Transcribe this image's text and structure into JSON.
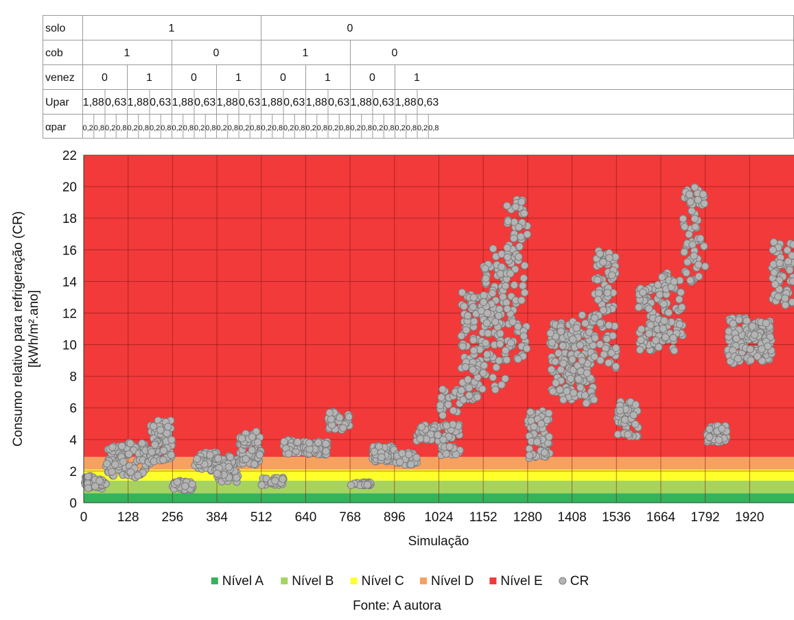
{
  "header_table": {
    "row_labels": [
      "solo",
      "cob",
      "venez",
      "Upar",
      "αpar"
    ],
    "solo": [
      "1",
      "0"
    ],
    "cob": [
      "1",
      "0",
      "1",
      "0"
    ],
    "venez": [
      "0",
      "1",
      "0",
      "1",
      "0",
      "1",
      "0",
      "1"
    ],
    "upar": [
      "1,88",
      "0,63",
      "1,88",
      "0,63",
      "1,88",
      "0,63",
      "1,88",
      "0,63",
      "1,88",
      "0,63",
      "1,88",
      "0,63",
      "1,88",
      "0,63",
      "1,88",
      "0,63"
    ],
    "apar": [
      "0,2",
      "0,8",
      "0,2",
      "0,8",
      "0,2",
      "0,8",
      "0,2",
      "0,8",
      "0,2",
      "0,8",
      "0,2",
      "0,8",
      "0,2",
      "0,8",
      "0,2",
      "0,8",
      "0,2",
      "0,8",
      "0,2",
      "0,8",
      "0,2",
      "0,8",
      "0,2",
      "0,8",
      "0,2",
      "0,8",
      "0,2",
      "0,8",
      "0,2",
      "0,8",
      "0,2",
      "0,8"
    ]
  },
  "chart_data": {
    "type": "scatter",
    "xlabel": "Simulação",
    "ylabel": "Consumo relativo para refrigeração (CR) [kWh/m².ano]",
    "xlim": [
      0,
      2048
    ],
    "ylim": [
      0,
      22
    ],
    "x_ticks": [
      "0",
      "128",
      "256",
      "384",
      "512",
      "640",
      "768",
      "896",
      "1024",
      "1152",
      "1280",
      "1408",
      "1536",
      "1664",
      "1792",
      "1920"
    ],
    "y_ticks": [
      "0",
      "2",
      "4",
      "6",
      "8",
      "10",
      "12",
      "14",
      "16",
      "18",
      "20",
      "22"
    ],
    "grid": true,
    "legend_position": "bottom",
    "bands": [
      {
        "name": "Nível A",
        "from": 0,
        "to": 0.6,
        "color": "#33b45a"
      },
      {
        "name": "Nível B",
        "from": 0.6,
        "to": 1.4,
        "color": "#a6d35f"
      },
      {
        "name": "Nível C",
        "from": 1.4,
        "to": 2.1,
        "color": "#ffff2b"
      },
      {
        "name": "Nível D",
        "from": 2.1,
        "to": 2.9,
        "color": "#f7a160"
      },
      {
        "name": "Nível E",
        "from": 2.9,
        "to": 22,
        "color": "#f23a3a"
      }
    ],
    "series": [
      {
        "name": "CR",
        "color": "#b4b4b4",
        "clusters": [
          {
            "x0": 0,
            "x1": 30,
            "y0": 0.9,
            "y1": 1.7,
            "n": 30
          },
          {
            "x0": 30,
            "x1": 64,
            "y0": 0.9,
            "y1": 1.5,
            "n": 24
          },
          {
            "x0": 64,
            "x1": 128,
            "y0": 1.7,
            "y1": 3.6,
            "n": 60
          },
          {
            "x0": 128,
            "x1": 192,
            "y0": 1.6,
            "y1": 3.8,
            "n": 60
          },
          {
            "x0": 192,
            "x1": 256,
            "y0": 2.6,
            "y1": 5.3,
            "n": 70
          },
          {
            "x0": 256,
            "x1": 320,
            "y0": 0.8,
            "y1": 1.4,
            "n": 30
          },
          {
            "x0": 320,
            "x1": 384,
            "y0": 2.0,
            "y1": 3.2,
            "n": 50
          },
          {
            "x0": 384,
            "x1": 448,
            "y0": 1.3,
            "y1": 3.0,
            "n": 50
          },
          {
            "x0": 448,
            "x1": 512,
            "y0": 2.4,
            "y1": 4.6,
            "n": 60
          },
          {
            "x0": 512,
            "x1": 576,
            "y0": 1.1,
            "y1": 1.6,
            "n": 30
          },
          {
            "x0": 576,
            "x1": 640,
            "y0": 3.1,
            "y1": 4.0,
            "n": 50
          },
          {
            "x0": 640,
            "x1": 704,
            "y0": 3.0,
            "y1": 3.9,
            "n": 50
          },
          {
            "x0": 704,
            "x1": 768,
            "y0": 4.6,
            "y1": 5.8,
            "n": 30
          },
          {
            "x0": 768,
            "x1": 832,
            "y0": 1.1,
            "y1": 1.3,
            "n": 24
          },
          {
            "x0": 832,
            "x1": 896,
            "y0": 2.6,
            "y1": 3.6,
            "n": 50
          },
          {
            "x0": 896,
            "x1": 960,
            "y0": 2.4,
            "y1": 3.2,
            "n": 40
          },
          {
            "x0": 960,
            "x1": 1024,
            "y0": 3.9,
            "y1": 5.0,
            "n": 50
          },
          {
            "x0": 1024,
            "x1": 1088,
            "y0": 3.0,
            "y1": 7.2,
            "n": 60
          },
          {
            "x0": 1088,
            "x1": 1152,
            "y0": 6.5,
            "y1": 13.4,
            "n": 90
          },
          {
            "x0": 1152,
            "x1": 1216,
            "y0": 7.0,
            "y1": 16.1,
            "n": 90
          },
          {
            "x0": 1216,
            "x1": 1280,
            "y0": 9.0,
            "y1": 19.2,
            "n": 90
          },
          {
            "x0": 1280,
            "x1": 1344,
            "y0": 2.8,
            "y1": 5.8,
            "n": 60
          },
          {
            "x0": 1344,
            "x1": 1408,
            "y0": 6.5,
            "y1": 11.4,
            "n": 90
          },
          {
            "x0": 1408,
            "x1": 1472,
            "y0": 6.2,
            "y1": 12.0,
            "n": 90
          },
          {
            "x0": 1472,
            "x1": 1536,
            "y0": 8.5,
            "y1": 16.0,
            "n": 90
          },
          {
            "x0": 1536,
            "x1": 1600,
            "y0": 4.2,
            "y1": 6.4,
            "n": 50
          },
          {
            "x0": 1600,
            "x1": 1664,
            "y0": 9.6,
            "y1": 13.8,
            "n": 70
          },
          {
            "x0": 1664,
            "x1": 1728,
            "y0": 9.6,
            "y1": 14.6,
            "n": 60
          },
          {
            "x0": 1728,
            "x1": 1792,
            "y0": 13.8,
            "y1": 20.0,
            "n": 60
          },
          {
            "x0": 1792,
            "x1": 1856,
            "y0": 3.8,
            "y1": 4.9,
            "n": 40
          },
          {
            "x0": 1856,
            "x1": 1920,
            "y0": 8.8,
            "y1": 11.7,
            "n": 70
          },
          {
            "x0": 1920,
            "x1": 1984,
            "y0": 8.9,
            "y1": 11.5,
            "n": 70
          },
          {
            "x0": 1984,
            "x1": 2048,
            "y0": 12.5,
            "y1": 16.6,
            "n": 60
          }
        ]
      }
    ]
  },
  "legend": {
    "items": [
      {
        "label": "Nível A",
        "color": "#33b45a",
        "shape": "square"
      },
      {
        "label": "Nível B",
        "color": "#a6d35f",
        "shape": "square"
      },
      {
        "label": "Nível C",
        "color": "#ffff2b",
        "shape": "square"
      },
      {
        "label": "Nível D",
        "color": "#f7a160",
        "shape": "square"
      },
      {
        "label": "Nível E",
        "color": "#f23a3a",
        "shape": "square"
      },
      {
        "label": "CR",
        "color": "#b4b4b4",
        "shape": "circle"
      }
    ]
  },
  "source": "Fonte: A autora"
}
